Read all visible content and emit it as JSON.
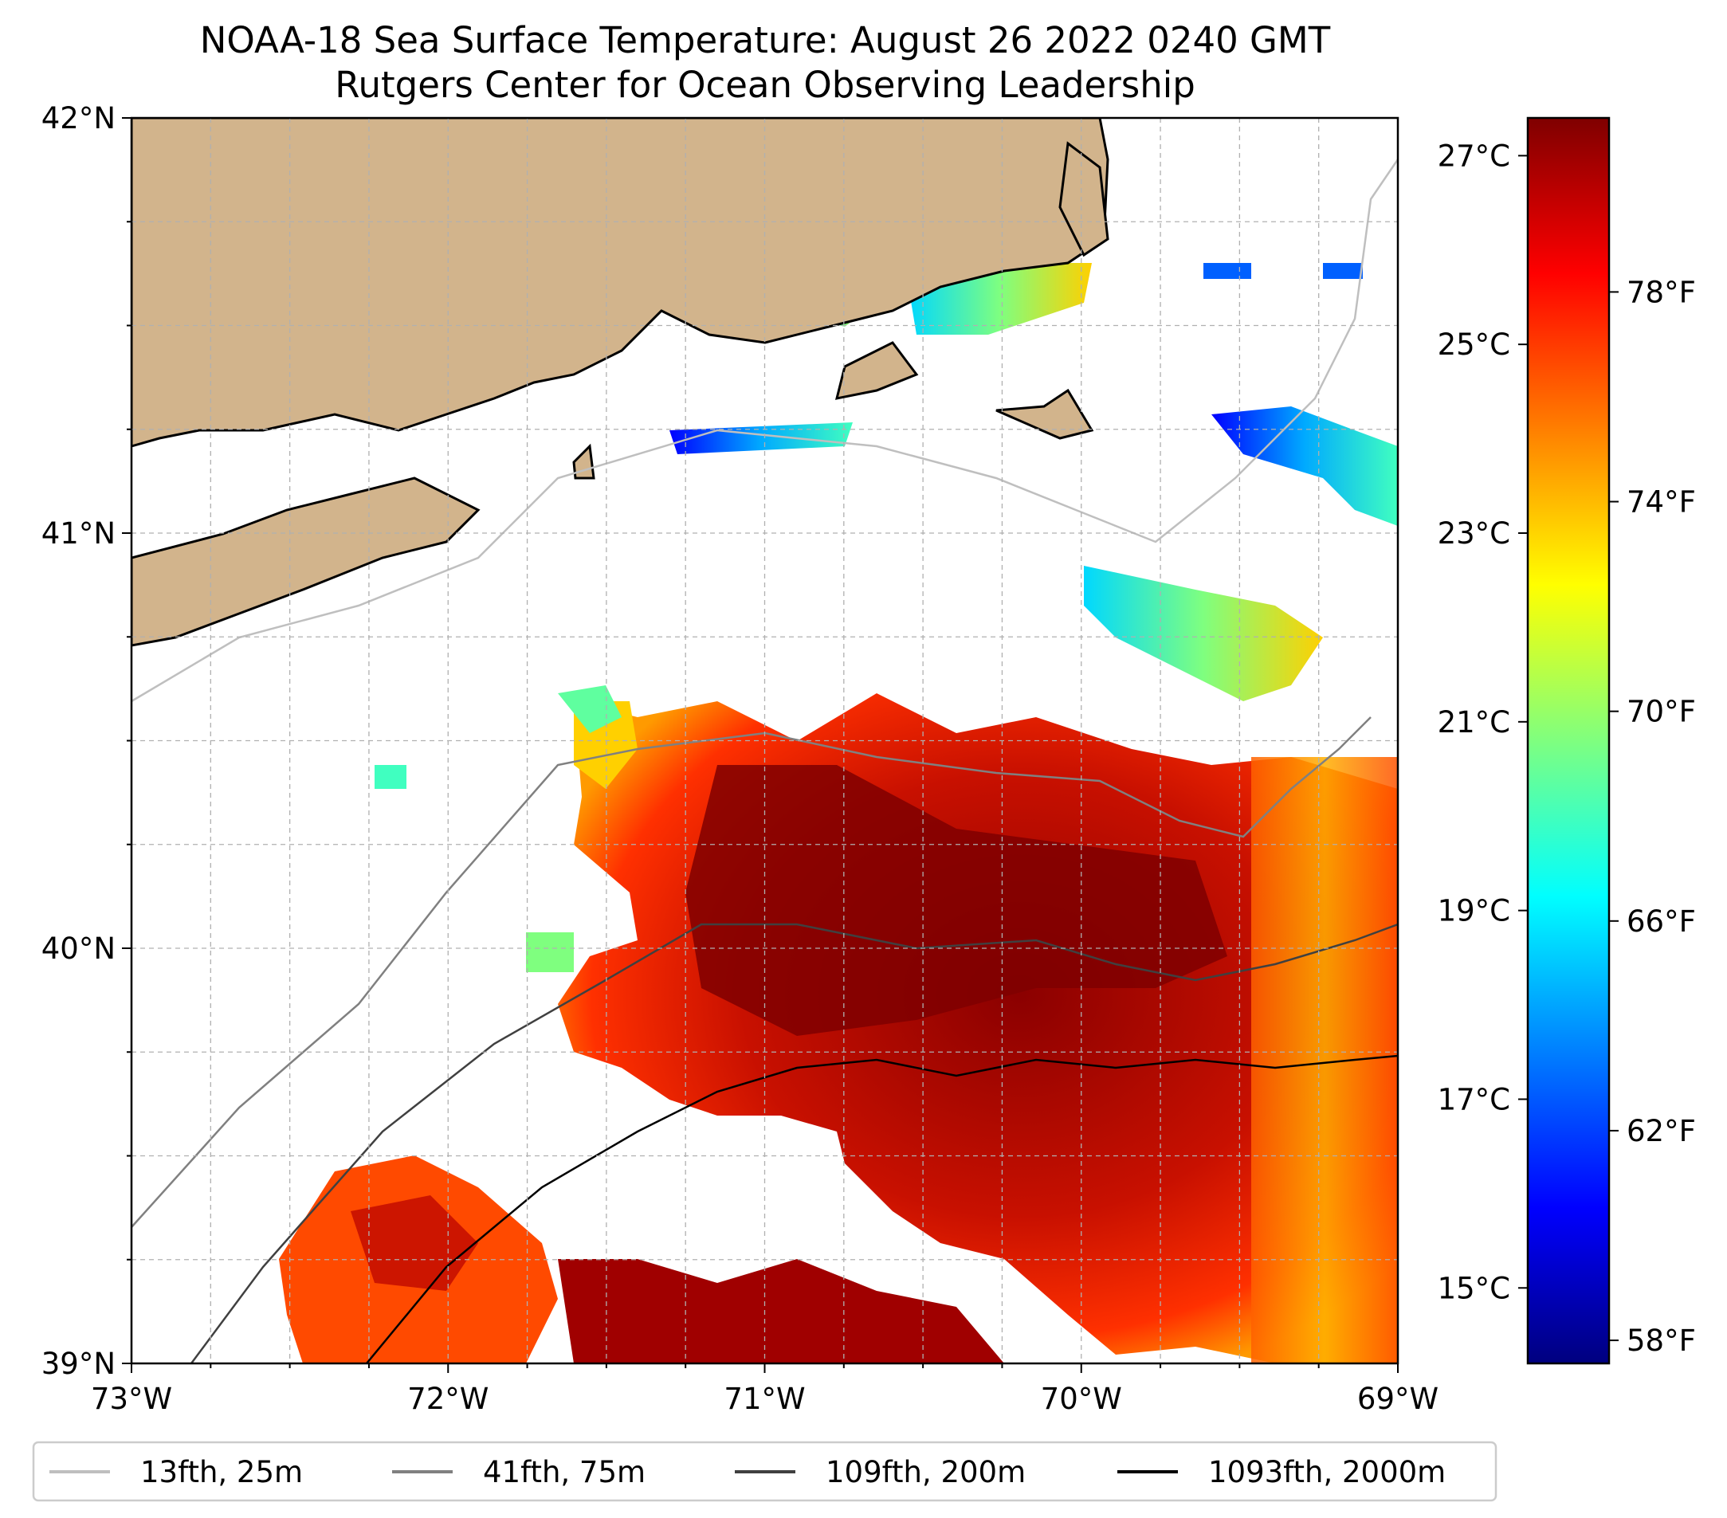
{
  "title_line1": "NOAA-18 Sea Surface Temperature: August 26 2022 0240 GMT",
  "title_line2": "Rutgers Center for Ocean Observing Leadership",
  "map": {
    "lat_range": [
      39,
      42
    ],
    "lon_range": [
      -73,
      -69
    ],
    "lat_ticks": [
      {
        "value": 42,
        "label": "42°N"
      },
      {
        "value": 41,
        "label": "41°N"
      },
      {
        "value": 40,
        "label": "40°N"
      },
      {
        "value": 39,
        "label": "39°N"
      }
    ],
    "lon_ticks": [
      {
        "value": -73,
        "label": "73°W"
      },
      {
        "value": -72,
        "label": "72°W"
      },
      {
        "value": -71,
        "label": "71°W"
      },
      {
        "value": -70,
        "label": "70°W"
      },
      {
        "value": -69,
        "label": "69°W"
      }
    ],
    "grid": "dashed, every 0.25°",
    "land_color": "#d2b48c"
  },
  "colorbar": {
    "colors": [
      "#00007f",
      "#0000ff",
      "#007fff",
      "#00ffff",
      "#7fff7f",
      "#ffff00",
      "#ff7f00",
      "#ff0000",
      "#7f0000"
    ],
    "range_c": [
      14.2,
      27.4
    ],
    "celsius_ticks": [
      {
        "value": 27,
        "label": "27°C"
      },
      {
        "value": 25,
        "label": "25°C"
      },
      {
        "value": 23,
        "label": "23°C"
      },
      {
        "value": 21,
        "label": "21°C"
      },
      {
        "value": 19,
        "label": "19°C"
      },
      {
        "value": 17,
        "label": "17°C"
      },
      {
        "value": 15,
        "label": "15°C"
      }
    ],
    "fahrenheit_ticks": [
      {
        "value": 78,
        "label": "78°F"
      },
      {
        "value": 74,
        "label": "74°F"
      },
      {
        "value": 70,
        "label": "70°F"
      },
      {
        "value": 66,
        "label": "66°F"
      },
      {
        "value": 62,
        "label": "62°F"
      },
      {
        "value": 58,
        "label": "58°F"
      }
    ]
  },
  "legend": [
    {
      "label": "13fth, 25m",
      "color": "#bfbfbf"
    },
    {
      "label": "41fth, 75m",
      "color": "#808080"
    },
    {
      "label": "109fth, 200m",
      "color": "#404040"
    },
    {
      "label": "1093fth, 2000m",
      "color": "#000000"
    }
  ]
}
